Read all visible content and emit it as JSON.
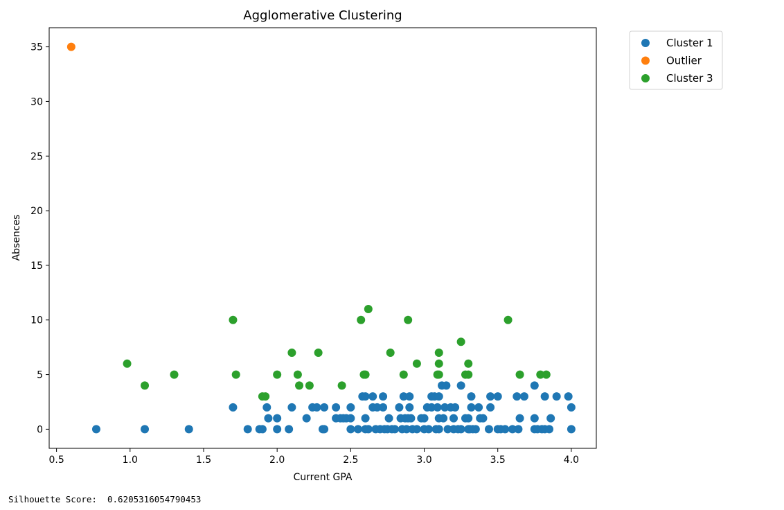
{
  "chart_data": {
    "type": "scatter",
    "title": "Agglomerative Clustering",
    "xlabel": "Current GPA",
    "ylabel": "Absences",
    "xlim": [
      0.45,
      4.17
    ],
    "ylim": [
      -1.75,
      36.75
    ],
    "xticks": [
      "0.5",
      "1.0",
      "1.5",
      "2.0",
      "2.5",
      "3.0",
      "3.5",
      "4.0"
    ],
    "xtick_values": [
      0.5,
      1.0,
      1.5,
      2.0,
      2.5,
      3.0,
      3.5,
      4.0
    ],
    "yticks": [
      "0",
      "5",
      "10",
      "15",
      "20",
      "25",
      "30",
      "35"
    ],
    "ytick_values": [
      0,
      5,
      10,
      15,
      20,
      25,
      30,
      35
    ],
    "grid": false,
    "legend_position": "outside-top-right",
    "series": [
      {
        "name": "Cluster 1",
        "color": "#1f77b4",
        "points": [
          [
            0.77,
            0
          ],
          [
            1.1,
            0
          ],
          [
            1.4,
            0
          ],
          [
            1.7,
            2
          ],
          [
            1.8,
            0
          ],
          [
            1.88,
            0
          ],
          [
            1.9,
            0
          ],
          [
            1.93,
            2
          ],
          [
            1.94,
            1
          ],
          [
            2.0,
            1
          ],
          [
            2.0,
            0
          ],
          [
            2.08,
            0
          ],
          [
            2.1,
            2
          ],
          [
            2.2,
            1
          ],
          [
            2.24,
            2
          ],
          [
            2.27,
            2
          ],
          [
            2.31,
            0
          ],
          [
            2.32,
            0
          ],
          [
            2.32,
            2
          ],
          [
            2.4,
            2
          ],
          [
            2.4,
            1
          ],
          [
            2.43,
            1
          ],
          [
            2.45,
            1
          ],
          [
            2.47,
            1
          ],
          [
            2.5,
            1
          ],
          [
            2.5,
            2
          ],
          [
            2.5,
            0
          ],
          [
            2.55,
            0
          ],
          [
            2.58,
            3
          ],
          [
            2.6,
            0
          ],
          [
            2.6,
            3
          ],
          [
            2.6,
            1
          ],
          [
            2.62,
            0
          ],
          [
            2.65,
            3
          ],
          [
            2.65,
            2
          ],
          [
            2.67,
            0
          ],
          [
            2.68,
            2
          ],
          [
            2.7,
            0
          ],
          [
            2.72,
            3
          ],
          [
            2.72,
            2
          ],
          [
            2.73,
            0
          ],
          [
            2.75,
            0
          ],
          [
            2.76,
            1
          ],
          [
            2.78,
            0
          ],
          [
            2.8,
            0
          ],
          [
            2.83,
            2
          ],
          [
            2.84,
            1
          ],
          [
            2.85,
            0
          ],
          [
            2.86,
            3
          ],
          [
            2.87,
            1
          ],
          [
            2.88,
            0
          ],
          [
            2.89,
            1
          ],
          [
            2.9,
            3
          ],
          [
            2.9,
            2
          ],
          [
            2.91,
            1
          ],
          [
            2.92,
            0
          ],
          [
            2.95,
            0
          ],
          [
            2.98,
            1
          ],
          [
            3.0,
            1
          ],
          [
            3.0,
            0
          ],
          [
            3.02,
            2
          ],
          [
            3.03,
            0
          ],
          [
            3.05,
            2
          ],
          [
            3.05,
            3
          ],
          [
            3.07,
            3
          ],
          [
            3.08,
            0
          ],
          [
            3.09,
            2
          ],
          [
            3.1,
            3
          ],
          [
            3.1,
            1
          ],
          [
            3.1,
            0
          ],
          [
            3.12,
            4
          ],
          [
            3.13,
            1
          ],
          [
            3.14,
            2
          ],
          [
            3.15,
            4
          ],
          [
            3.16,
            0
          ],
          [
            3.18,
            2
          ],
          [
            3.2,
            1
          ],
          [
            3.2,
            0
          ],
          [
            3.21,
            2
          ],
          [
            3.23,
            0
          ],
          [
            3.25,
            4
          ],
          [
            3.25,
            0
          ],
          [
            3.28,
            1
          ],
          [
            3.3,
            0
          ],
          [
            3.3,
            1
          ],
          [
            3.31,
            0
          ],
          [
            3.32,
            2
          ],
          [
            3.32,
            3
          ],
          [
            3.33,
            0
          ],
          [
            3.35,
            0
          ],
          [
            3.37,
            2
          ],
          [
            3.38,
            1
          ],
          [
            3.4,
            1
          ],
          [
            3.44,
            0
          ],
          [
            3.45,
            3
          ],
          [
            3.45,
            2
          ],
          [
            3.5,
            3
          ],
          [
            3.5,
            0
          ],
          [
            3.52,
            0
          ],
          [
            3.55,
            0
          ],
          [
            3.6,
            0
          ],
          [
            3.63,
            3
          ],
          [
            3.64,
            0
          ],
          [
            3.65,
            1
          ],
          [
            3.68,
            3
          ],
          [
            3.75,
            4
          ],
          [
            3.75,
            1
          ],
          [
            3.75,
            0
          ],
          [
            3.77,
            0
          ],
          [
            3.8,
            0
          ],
          [
            3.82,
            0
          ],
          [
            3.82,
            3
          ],
          [
            3.85,
            0
          ],
          [
            3.86,
            1
          ],
          [
            3.9,
            3
          ],
          [
            3.98,
            3
          ],
          [
            4.0,
            2
          ],
          [
            4.0,
            0
          ]
        ]
      },
      {
        "name": "Outlier",
        "color": "#ff7f0e",
        "points": [
          [
            0.6,
            35
          ]
        ]
      },
      {
        "name": "Cluster 3",
        "color": "#2ca02c",
        "points": [
          [
            0.98,
            6
          ],
          [
            1.1,
            4
          ],
          [
            1.3,
            5
          ],
          [
            1.7,
            10
          ],
          [
            1.72,
            5
          ],
          [
            1.9,
            3
          ],
          [
            1.92,
            3
          ],
          [
            2.0,
            5
          ],
          [
            2.1,
            7
          ],
          [
            2.14,
            5
          ],
          [
            2.15,
            4
          ],
          [
            2.22,
            4
          ],
          [
            2.28,
            7
          ],
          [
            2.44,
            4
          ],
          [
            2.57,
            10
          ],
          [
            2.59,
            5
          ],
          [
            2.6,
            5
          ],
          [
            2.62,
            11
          ],
          [
            2.77,
            7
          ],
          [
            2.86,
            5
          ],
          [
            2.89,
            10
          ],
          [
            2.95,
            6
          ],
          [
            3.09,
            5
          ],
          [
            3.1,
            7
          ],
          [
            3.1,
            6
          ],
          [
            3.1,
            5
          ],
          [
            3.25,
            8
          ],
          [
            3.28,
            5
          ],
          [
            3.3,
            6
          ],
          [
            3.3,
            5
          ],
          [
            3.57,
            10
          ],
          [
            3.65,
            5
          ],
          [
            3.79,
            5
          ],
          [
            3.83,
            5
          ]
        ]
      }
    ]
  },
  "output": {
    "silhouette": "Silhouette Score:  0.6205316054790453"
  }
}
